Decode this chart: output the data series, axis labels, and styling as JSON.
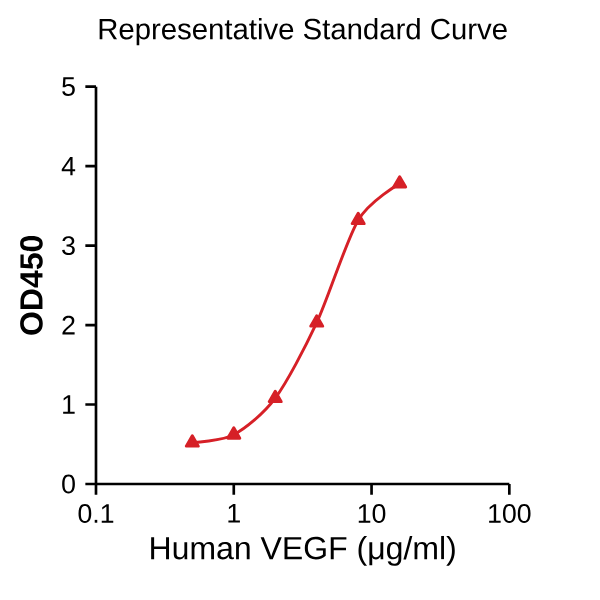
{
  "chart_data": {
    "type": "line",
    "title": "Representative Standard Curve",
    "xlabel": "Human VEGF (μg/ml)",
    "ylabel": "OD450",
    "log": "x",
    "x": [
      0.5,
      1,
      2,
      4,
      8,
      16
    ],
    "series": [
      {
        "color": "#d62027",
        "values": [
          0.52,
          0.62,
          1.08,
          2.03,
          3.32,
          3.78
        ]
      }
    ],
    "xlim": [
      0.1,
      100
    ],
    "xticks": [
      0.1,
      1,
      10,
      100
    ],
    "ylim": [
      0,
      5
    ],
    "yticks": [
      0,
      1,
      2,
      3,
      4,
      5
    ],
    "marker": "triangle",
    "line_style": "solid",
    "grid": false
  }
}
